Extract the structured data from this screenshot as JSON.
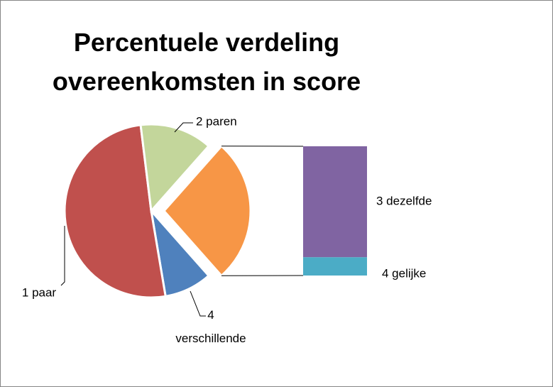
{
  "chart_data": {
    "type": "bar-of-pie",
    "title": "Percentuele verdeling overeenkomsten in score",
    "categories": [
      "4 verschillende",
      "1 paar",
      "2 paren",
      "3 dezelfde",
      "4 gelijke"
    ],
    "values": [
      8.9,
      50.7,
      13.5,
      23.1,
      3.8
    ],
    "colors": [
      "#4f81bd",
      "#c0504d",
      "#c3d69b",
      "#8064a2",
      "#4bacc6"
    ],
    "other_color": "#f79646",
    "secondary_count": 2
  }
}
